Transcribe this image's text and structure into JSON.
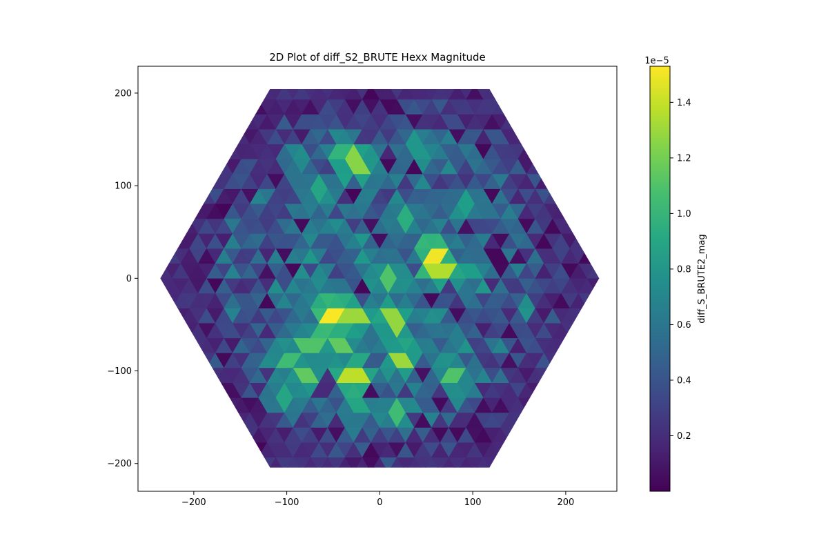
{
  "chart_data": {
    "type": "heatmap",
    "subtype": "triangular-mesh-on-hexagon",
    "title": "2D Plot of diff_S2_BRUTE Hexx Magnitude",
    "xlabel": "",
    "ylabel": "",
    "xlim": [
      -260,
      255
    ],
    "ylim": [
      -230,
      229
    ],
    "x_ticks": [
      -200,
      -100,
      0,
      100,
      200
    ],
    "x_tick_labels": [
      "−200",
      "−100",
      "0",
      "100",
      "200"
    ],
    "y_ticks": [
      200,
      100,
      0,
      -100,
      -200
    ],
    "y_tick_labels": [
      "200",
      "100",
      "0",
      "−100",
      "−200"
    ],
    "hexagon": {
      "center": [
        0,
        0
      ],
      "flat_to_flat": 410,
      "vertex_to_vertex": 472,
      "orientation": "pointy-sides-left-right"
    },
    "colormap": "viridis",
    "colorbar": {
      "label": "diff_S_BRUTE2_mag",
      "offset_label": "1e−5",
      "range": [
        0.0,
        1.53
      ],
      "ticks": [
        0.2,
        0.4,
        0.6,
        0.8,
        1.0,
        1.2,
        1.4
      ],
      "tick_labels": [
        "0.2",
        "0.4",
        "0.6",
        "0.8",
        "1.0",
        "1.2",
        "1.4"
      ]
    },
    "hotspots": [
      {
        "x": -52,
        "y": -42,
        "value": 1.52
      },
      {
        "x": 60,
        "y": 22,
        "value": 1.5
      },
      {
        "x": 65,
        "y": 12,
        "value": 1.35
      },
      {
        "x": -27,
        "y": -106,
        "value": 1.38
      },
      {
        "x": -27,
        "y": -45,
        "value": 1.3
      },
      {
        "x": 15,
        "y": -45,
        "value": 1.28
      },
      {
        "x": 25,
        "y": -85,
        "value": 1.3
      },
      {
        "x": -27,
        "y": 125,
        "value": 1.25
      },
      {
        "x": 80,
        "y": -106,
        "value": 1.1
      },
      {
        "x": -80,
        "y": -106,
        "value": 1.15
      },
      {
        "x": -100,
        "y": -90,
        "value": 1.05
      },
      {
        "x": 10,
        "y": 0,
        "value": 1.1
      },
      {
        "x": -75,
        "y": -70,
        "value": 1.1
      },
      {
        "x": -45,
        "y": -70,
        "value": 1.15
      },
      {
        "x": 15,
        "y": -145,
        "value": 1.05
      },
      {
        "x": -40,
        "y": 135,
        "value": 1.0
      },
      {
        "x": 25,
        "y": 65,
        "value": 0.95
      },
      {
        "x": -65,
        "y": 95,
        "value": 0.9
      },
      {
        "x": -45,
        "y": -25,
        "value": 0.95
      },
      {
        "x": -100,
        "y": -130,
        "value": 0.9
      },
      {
        "x": -25,
        "y": -140,
        "value": 0.9
      },
      {
        "x": 100,
        "y": 10,
        "value": 0.85
      },
      {
        "x": 95,
        "y": 80,
        "value": 0.85
      },
      {
        "x": 40,
        "y": 140,
        "value": 0.8
      }
    ]
  }
}
